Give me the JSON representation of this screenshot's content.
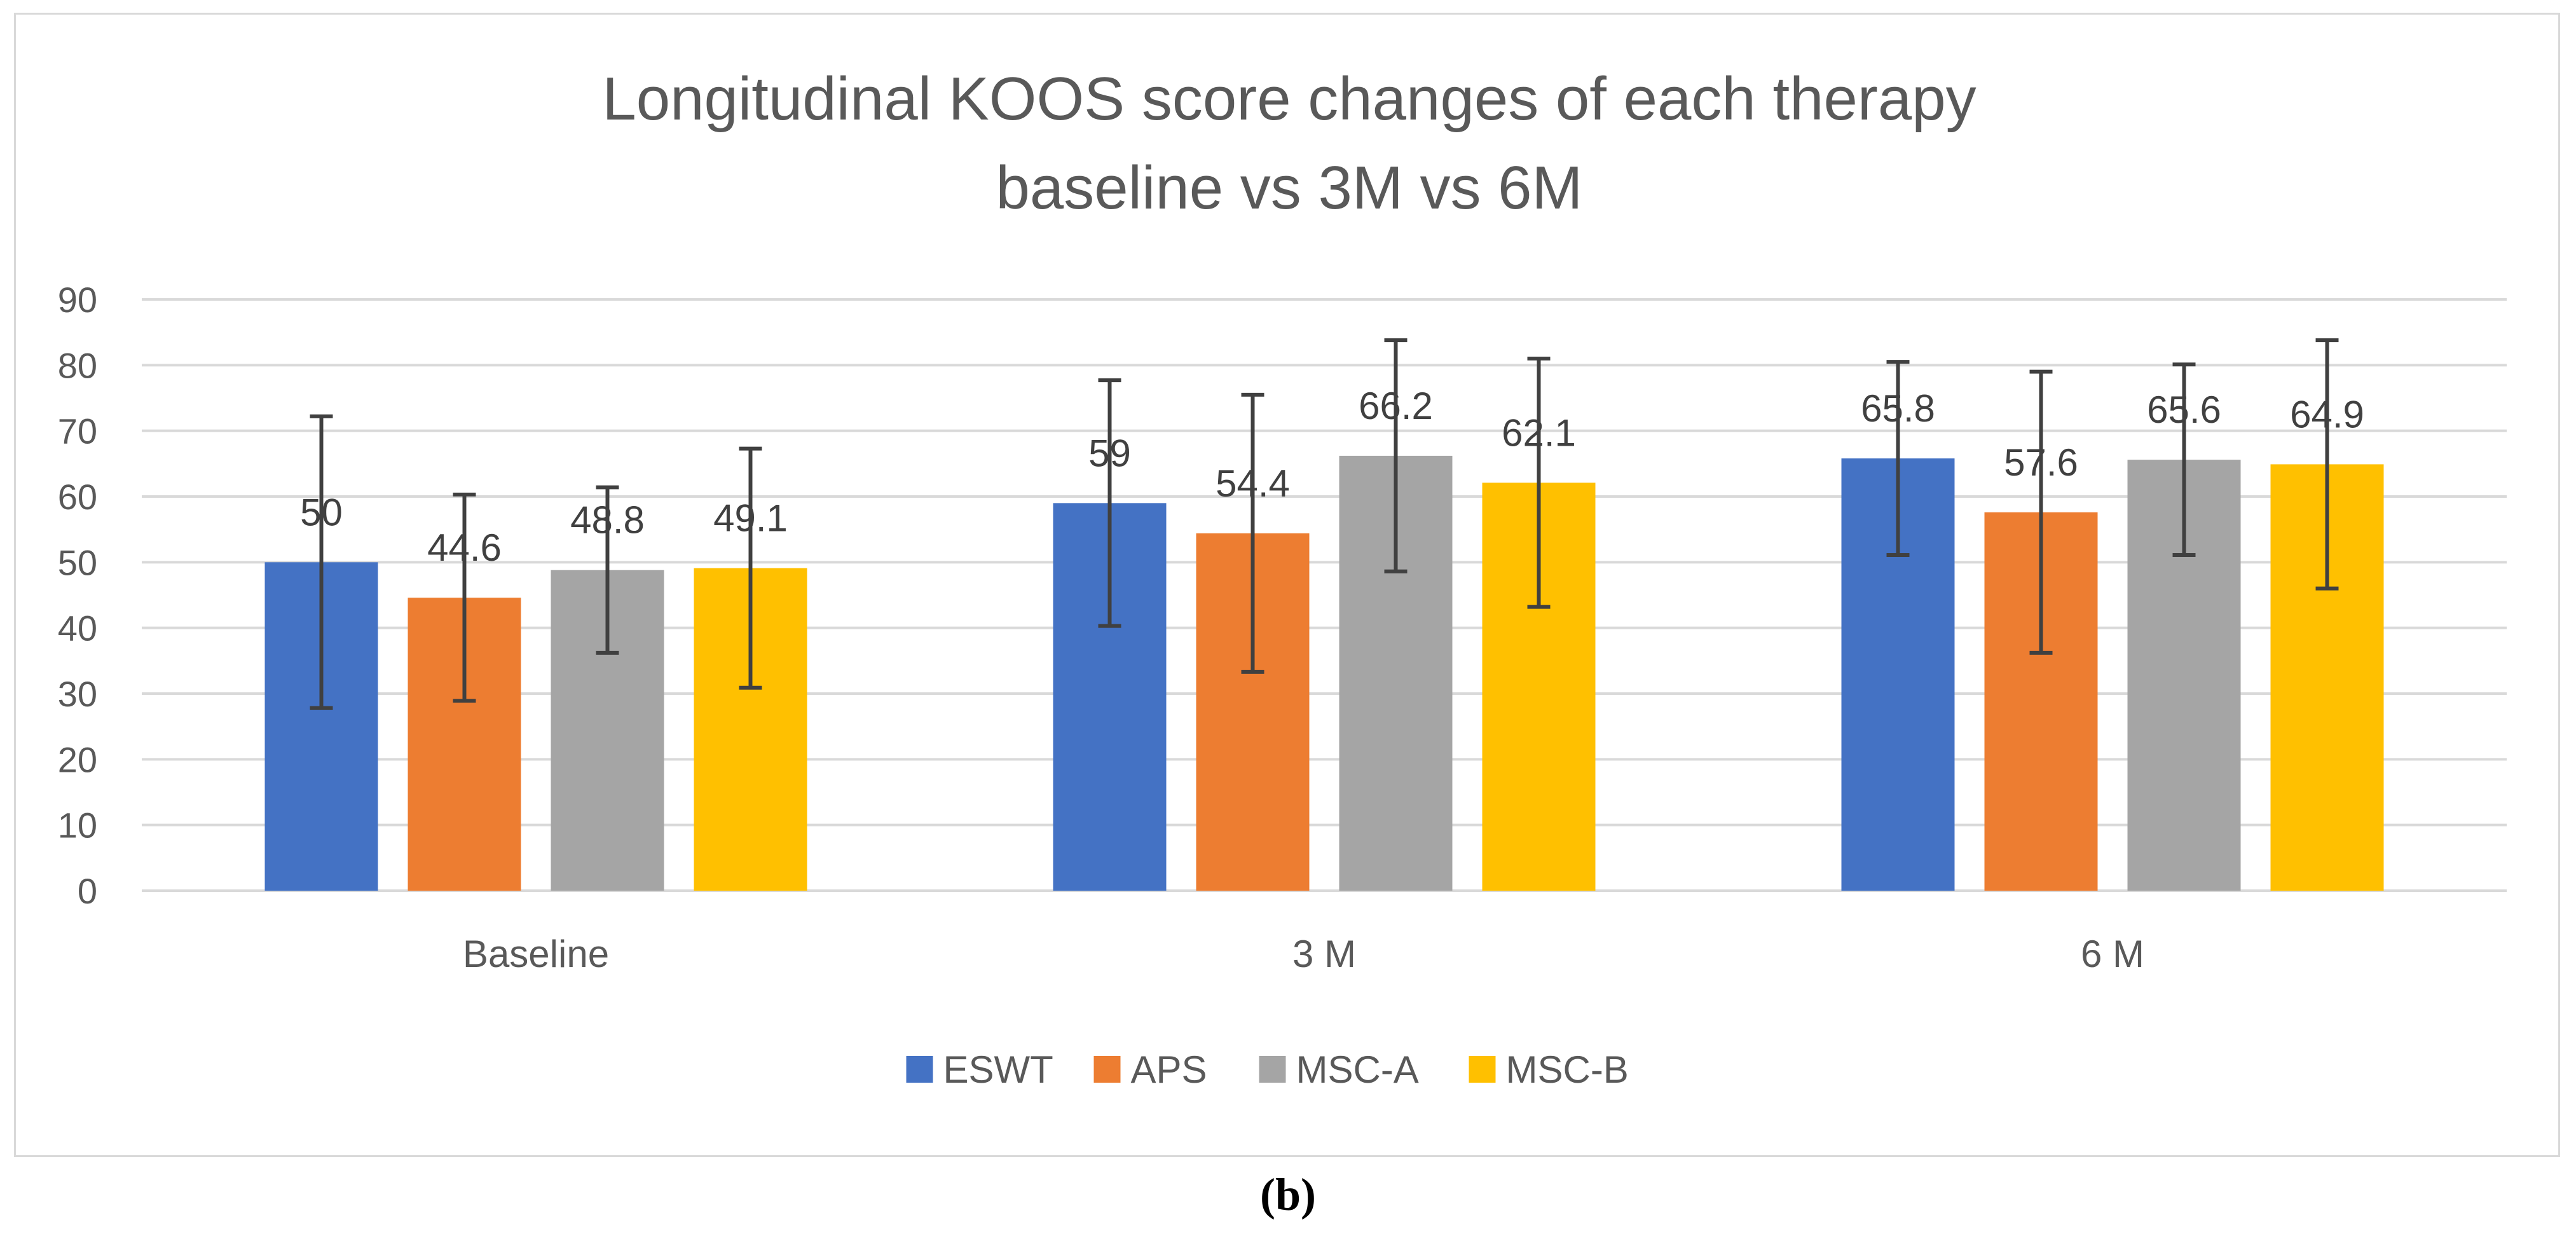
{
  "chart_data": {
    "type": "bar",
    "title": [
      "Longitudinal KOOS score changes of each therapy",
      "baseline vs 3M vs 6M"
    ],
    "categories": [
      "Baseline",
      "3 M",
      "6 M"
    ],
    "ylim": [
      0,
      90
    ],
    "yticks": [
      0,
      10,
      20,
      30,
      40,
      50,
      60,
      70,
      80,
      90
    ],
    "grid": true,
    "legend_position": "bottom",
    "series": [
      {
        "name": "ESWT",
        "color": "#4472c4",
        "values": [
          50,
          59,
          65.8
        ],
        "error_low": [
          27.8,
          40.3,
          51.1
        ],
        "error_high": [
          72.2,
          77.7,
          80.5
        ],
        "labels": [
          "50",
          "59",
          "65.8"
        ]
      },
      {
        "name": "APS",
        "color": "#ed7d31",
        "values": [
          44.6,
          54.4,
          57.6
        ],
        "error_low": [
          28.9,
          33.3,
          36.2
        ],
        "error_high": [
          60.3,
          75.5,
          79.0
        ],
        "labels": [
          "44.6",
          "54.4",
          "57.6"
        ]
      },
      {
        "name": "MSC-A",
        "color": "#a5a5a5",
        "values": [
          48.8,
          66.2,
          65.6
        ],
        "error_low": [
          36.2,
          48.6,
          51.1
        ],
        "error_high": [
          61.4,
          83.8,
          80.1
        ],
        "labels": [
          "48.8",
          "66.2",
          "65.6"
        ]
      },
      {
        "name": "MSC-B",
        "color": "#ffc000",
        "values": [
          49.1,
          62.1,
          64.9
        ],
        "error_low": [
          30.9,
          43.2,
          46.0
        ],
        "error_high": [
          67.3,
          81.0,
          83.8
        ],
        "labels": [
          "49.1",
          "62.1",
          "64.9"
        ]
      }
    ],
    "colors": {
      "grid": "#d9d9d9",
      "error_bar": "#404040",
      "text": "#595959"
    }
  },
  "caption": "(b)"
}
